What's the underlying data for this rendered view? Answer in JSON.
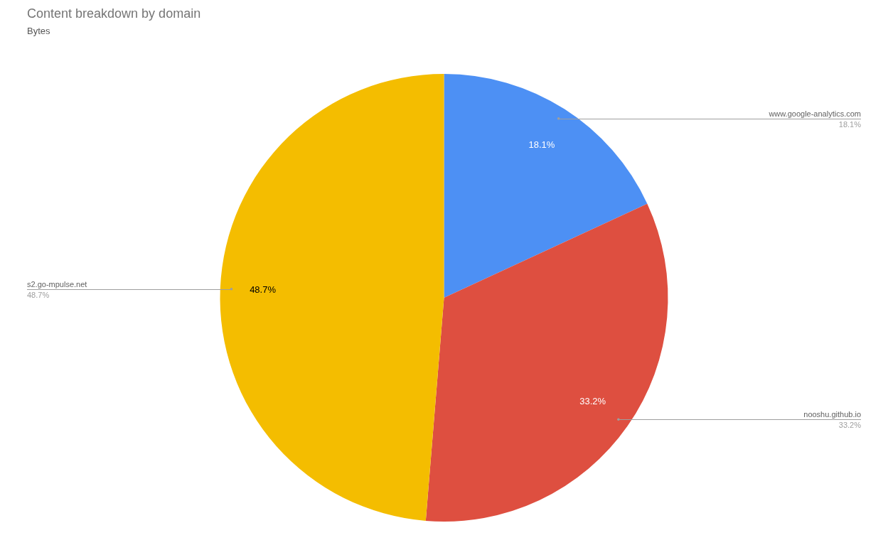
{
  "chart_data": {
    "type": "pie",
    "title": "Content breakdown by domain",
    "subtitle": "Bytes",
    "categories": [
      "www.google-analytics.com",
      "nooshu.github.io",
      "s2.go-mpulse.net"
    ],
    "values": [
      18.1,
      33.2,
      48.7
    ],
    "value_labels": [
      "18.1%",
      "33.2%",
      "48.7%"
    ],
    "colors": [
      "#4d90f4",
      "#de4f40",
      "#f4bd00"
    ],
    "data_labels": true
  }
}
